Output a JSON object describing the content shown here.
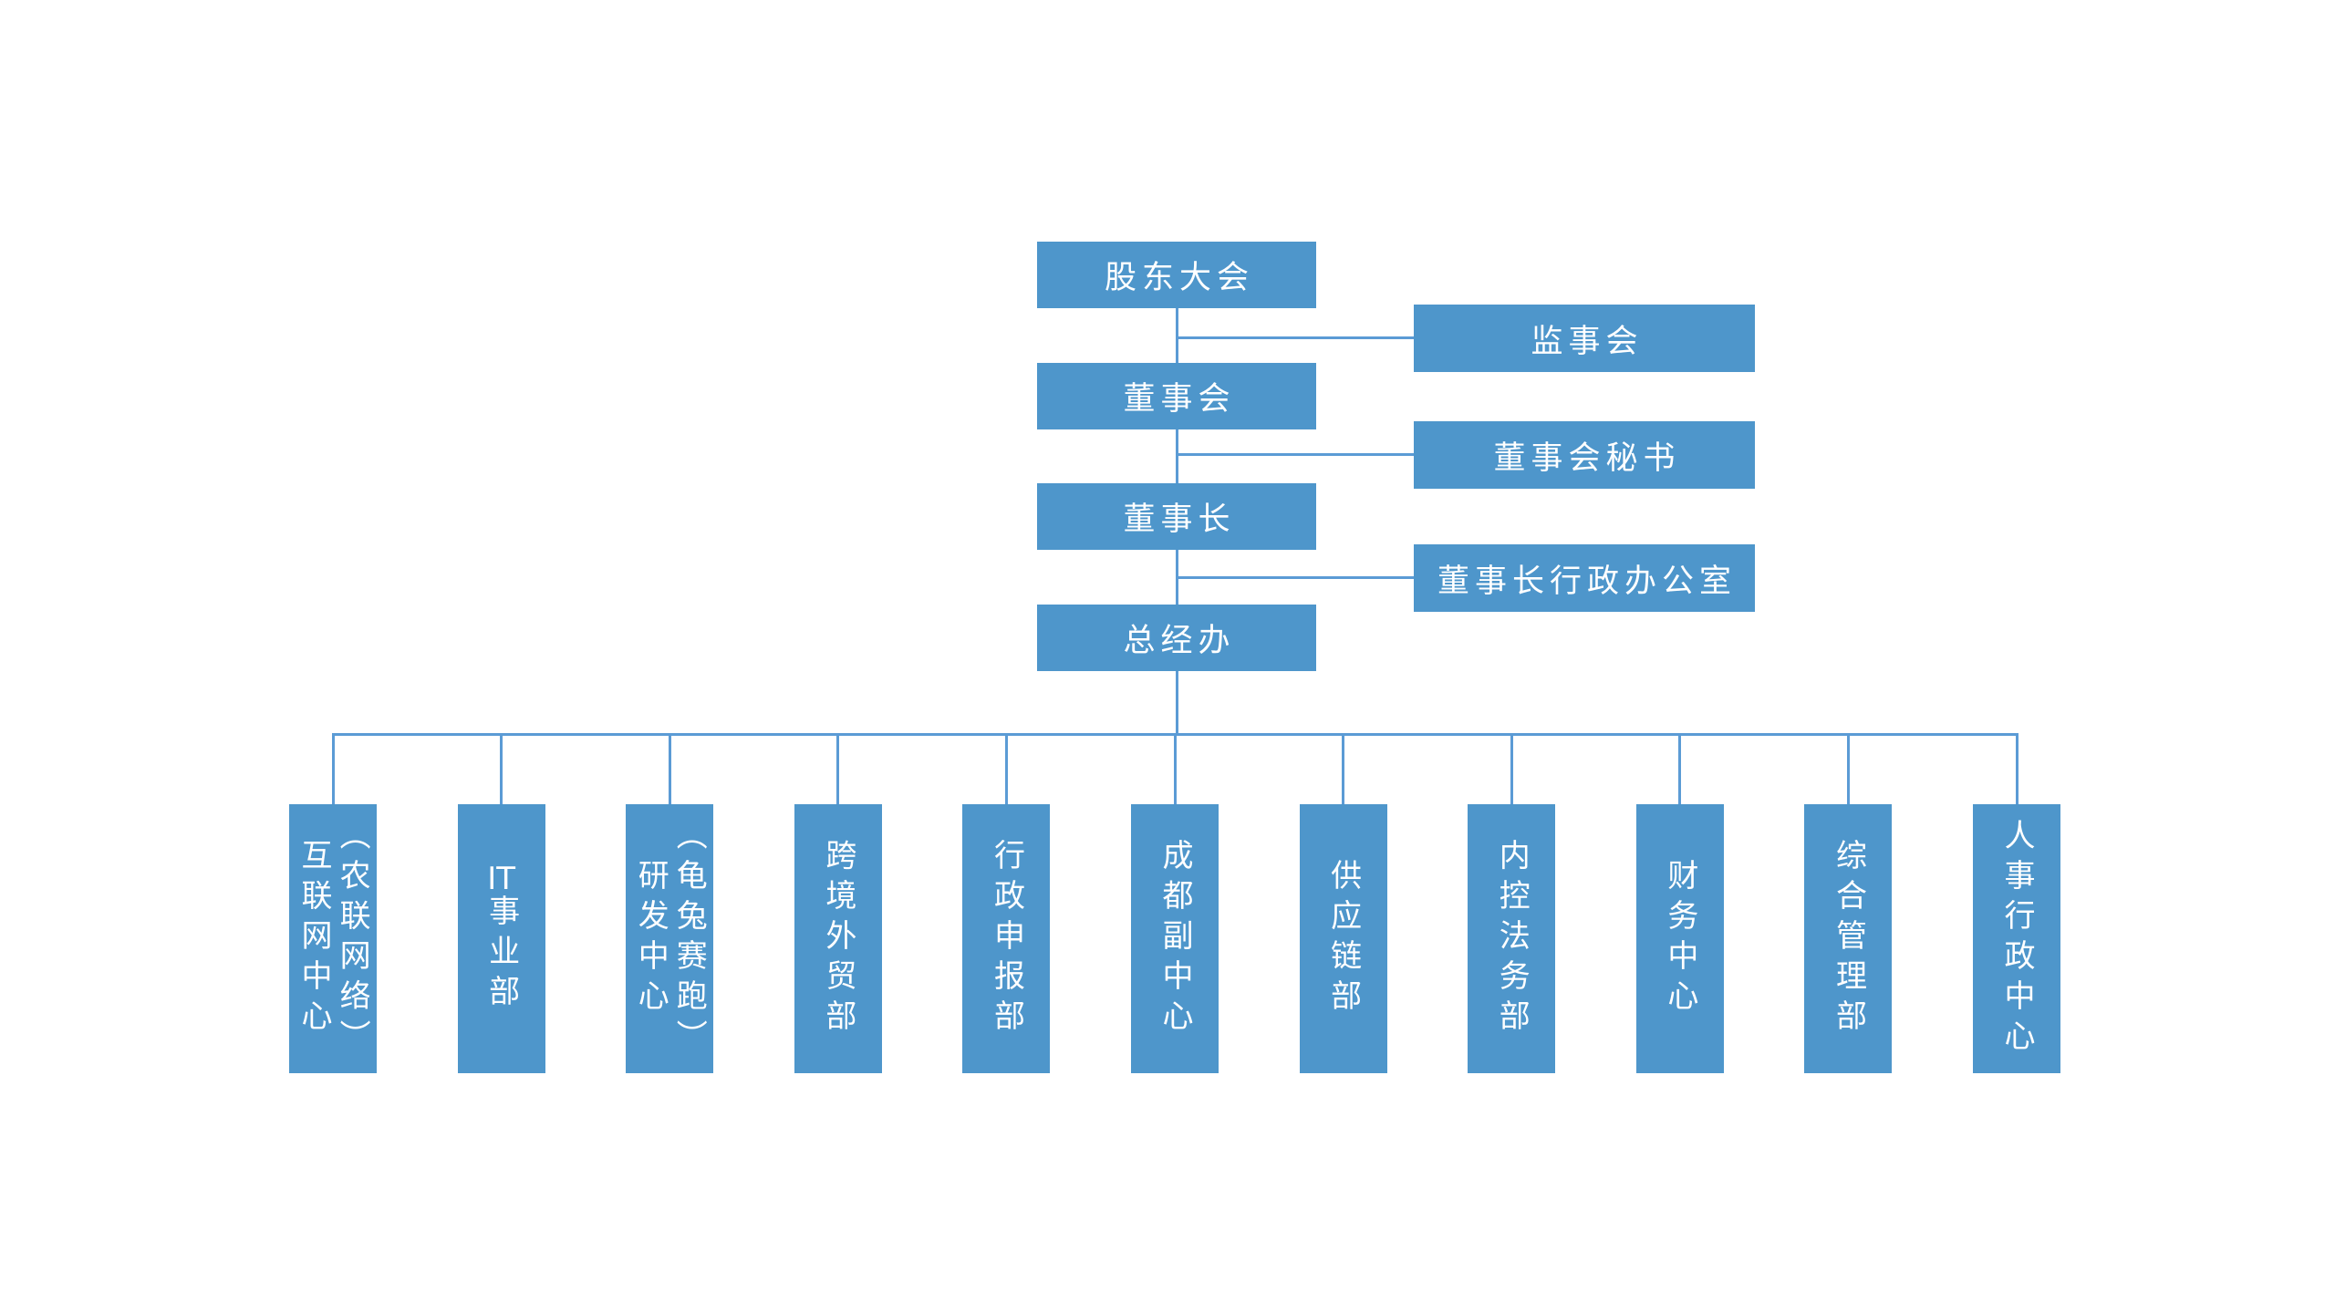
{
  "colors": {
    "box_fill": "#4E96CB",
    "connector": "#5B9BD5",
    "text": "#FFFFFF",
    "background": "#FFFFFF"
  },
  "org_chart": {
    "chain_nodes": [
      {
        "id": "shareholders-meeting",
        "label": "股东大会"
      },
      {
        "id": "board-of-directors",
        "label": "董事会"
      },
      {
        "id": "chairman",
        "label": "董事长"
      },
      {
        "id": "general-manager-office",
        "label": "总经办"
      }
    ],
    "side_nodes": [
      {
        "id": "board-of-supervisors",
        "label": "监事会",
        "attached_to": "股东大会"
      },
      {
        "id": "board-secretary",
        "label": "董事会秘书",
        "attached_to": "董事会"
      },
      {
        "id": "chairman-admin-office",
        "label": "董事长行政办公室",
        "attached_to": "董事长"
      }
    ],
    "departments": [
      {
        "id": "internet-center",
        "lines": [
          "互联网中心",
          "（农联网络）"
        ]
      },
      {
        "id": "it-business-division",
        "lines": [
          "IT事业部"
        ]
      },
      {
        "id": "rd-center",
        "lines": [
          "研发中心",
          "（龟兔赛跑）"
        ]
      },
      {
        "id": "cross-border-trade-dept",
        "lines": [
          "跨境外贸部"
        ]
      },
      {
        "id": "admin-declaration-dept",
        "lines": [
          "行政申报部"
        ]
      },
      {
        "id": "chengdu-sub-center",
        "lines": [
          "成都副中心"
        ]
      },
      {
        "id": "supply-chain-dept",
        "lines": [
          "供应链部"
        ]
      },
      {
        "id": "internal-control-legal-dept",
        "lines": [
          "内控法务部"
        ]
      },
      {
        "id": "finance-center",
        "lines": [
          "财务中心"
        ]
      },
      {
        "id": "general-management-dept",
        "lines": [
          "综合管理部"
        ]
      },
      {
        "id": "hr-admin-center",
        "lines": [
          "人事行政中心"
        ]
      }
    ]
  }
}
